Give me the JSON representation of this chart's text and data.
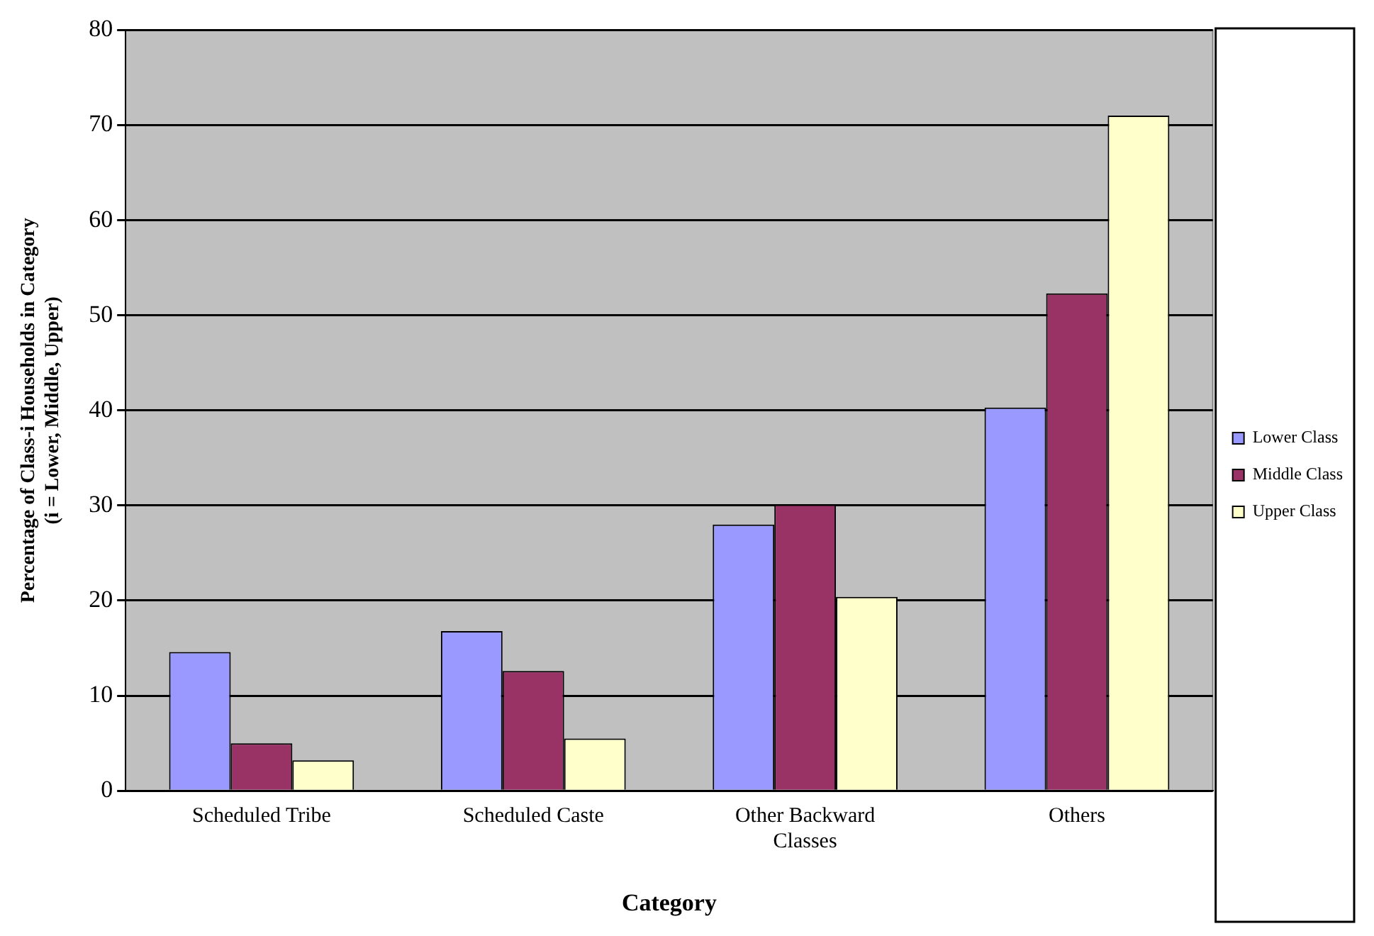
{
  "chart_data": {
    "type": "bar",
    "xlabel": "Category",
    "ylabel": "Percentage of Class-i Households in Category\n(i = Lower, Middle, Upper)",
    "categories": [
      "Scheduled Tribe",
      "Scheduled Caste",
      "Other Backward Classes",
      "Others"
    ],
    "series": [
      {
        "name": "Lower Class",
        "color": "#9999ff",
        "values": [
          14.6,
          16.8,
          28.0,
          40.3
        ]
      },
      {
        "name": "Middle Class",
        "color": "#993366",
        "values": [
          5.0,
          12.6,
          30.1,
          52.3
        ]
      },
      {
        "name": "Upper Class",
        "color": "#ffffcc",
        "values": [
          3.2,
          5.5,
          20.4,
          71.0
        ]
      }
    ],
    "ylim": [
      0,
      80
    ],
    "yticks": [
      0,
      10,
      20,
      30,
      40,
      50,
      60,
      70,
      80
    ],
    "grid": "y",
    "legend": "right"
  }
}
